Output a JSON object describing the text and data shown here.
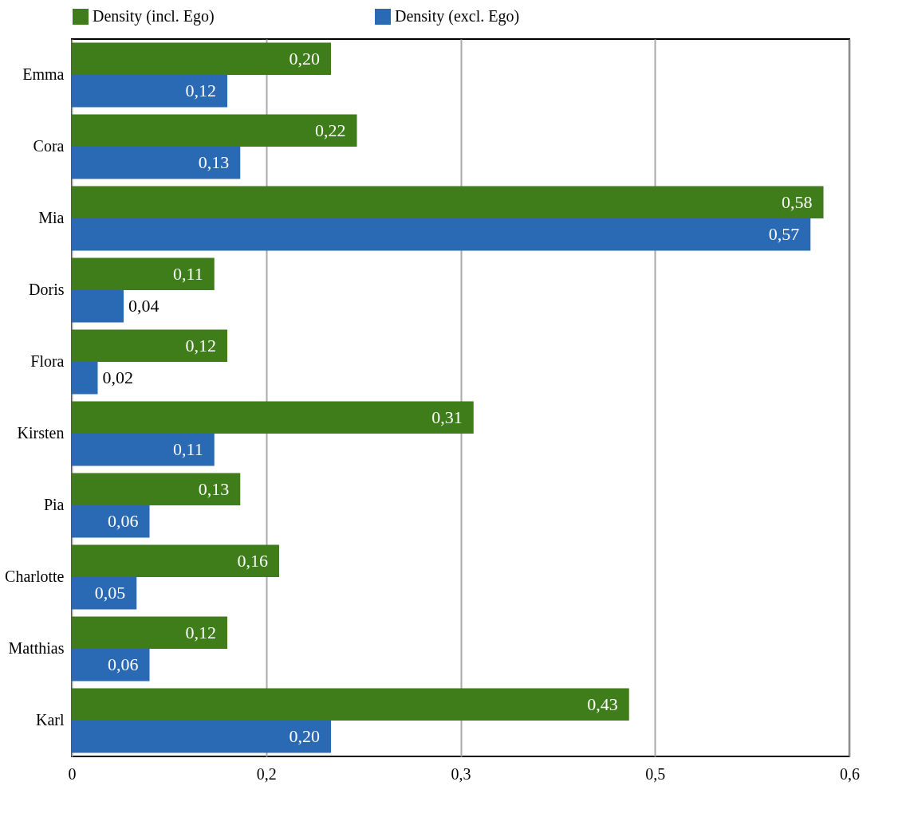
{
  "chart_data": {
    "type": "bar",
    "orientation": "horizontal",
    "categories": [
      "Emma",
      "Cora",
      "Mia",
      "Doris",
      "Flora",
      "Kirsten",
      "Pia",
      "Charlotte",
      "Matthias",
      "Karl"
    ],
    "series": [
      {
        "name": "Density (incl. Ego)",
        "color": "#3f7d1b",
        "values": [
          0.2,
          0.22,
          0.58,
          0.11,
          0.12,
          0.31,
          0.13,
          0.16,
          0.12,
          0.43
        ],
        "value_labels": [
          "0,20",
          "0,22",
          "0,58",
          "0,11",
          "0,12",
          "0,31",
          "0,13",
          "0,16",
          "0,12",
          "0,43"
        ]
      },
      {
        "name": "Density (excl. Ego)",
        "color": "#2a69b3",
        "values": [
          0.12,
          0.13,
          0.57,
          0.04,
          0.02,
          0.11,
          0.06,
          0.05,
          0.06,
          0.2
        ],
        "value_labels": [
          "0,12",
          "0,13",
          "0,57",
          "0,04",
          "0,02",
          "0,11",
          "0,06",
          "0,05",
          "0,06",
          "0,20"
        ]
      }
    ],
    "xlim": [
      0,
      0.6
    ],
    "xticks": [
      0,
      {
        "value": 0.15,
        "label": "0,2"
      },
      {
        "value": 0.3,
        "label": "0,3"
      },
      {
        "value": 0.45,
        "label": "0,5"
      },
      {
        "value": 0.6,
        "label": "0,6"
      }
    ],
    "grid": "x",
    "legend": "top"
  }
}
